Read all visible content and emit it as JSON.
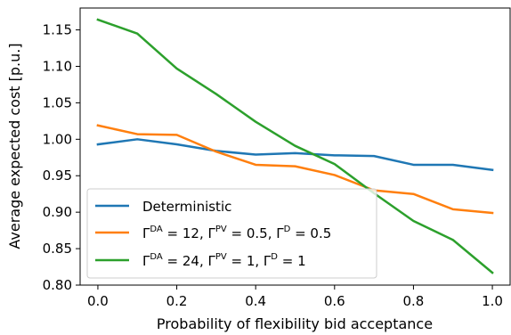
{
  "chart_data": {
    "type": "line",
    "xlabel": "Probability of flexibility bid acceptance",
    "ylabel": "Average expected cost [p.u.]",
    "xlim": [
      -0.045,
      1.045
    ],
    "ylim": [
      0.8,
      1.18
    ],
    "xticks": [
      0.0,
      0.2,
      0.4,
      0.6,
      0.8,
      1.0
    ],
    "xtick_labels": [
      "0.0",
      "0.2",
      "0.4",
      "0.6",
      "0.8",
      "1.0"
    ],
    "yticks": [
      0.8,
      0.85,
      0.9,
      0.95,
      1.0,
      1.05,
      1.1,
      1.15
    ],
    "ytick_labels": [
      "0.80",
      "0.85",
      "0.90",
      "0.95",
      "1.00",
      "1.05",
      "1.10",
      "1.15"
    ],
    "grid": false,
    "legend_position": "lower-left",
    "x": [
      0.0,
      0.1,
      0.2,
      0.3,
      0.4,
      0.5,
      0.6,
      0.7,
      0.8,
      0.9,
      1.0
    ],
    "series": [
      {
        "name": "Deterministic",
        "color": "#1f77b4",
        "values": [
          0.993,
          1.0,
          0.993,
          0.984,
          0.979,
          0.981,
          0.978,
          0.977,
          0.965,
          0.965,
          0.958
        ]
      },
      {
        "name": "Γ^DA = 12, Γ^PV = 0.5, Γ^D = 0.5",
        "color": "#ff7f0e",
        "values": [
          1.019,
          1.007,
          1.006,
          0.983,
          0.965,
          0.963,
          0.951,
          0.93,
          0.925,
          0.904,
          0.899
        ]
      },
      {
        "name": "Γ^DA = 24, Γ^PV = 1, Γ^D = 1",
        "color": "#2ca02c",
        "values": [
          1.164,
          1.145,
          1.097,
          1.062,
          1.024,
          0.991,
          0.966,
          0.926,
          0.888,
          0.862,
          0.817
        ]
      }
    ],
    "legend": [
      {
        "sup1": "DA",
        "v1": "12",
        "sup2": "PV",
        "v2": "0.5",
        "sup3": "D",
        "v3": "0.5"
      },
      {
        "sup1": "DA",
        "v1": "24",
        "sup2": "PV",
        "v2": "1",
        "sup3": "D",
        "v3": "1"
      }
    ],
    "legend_first_label": "Deterministic",
    "legend_gamma": "Γ"
  }
}
